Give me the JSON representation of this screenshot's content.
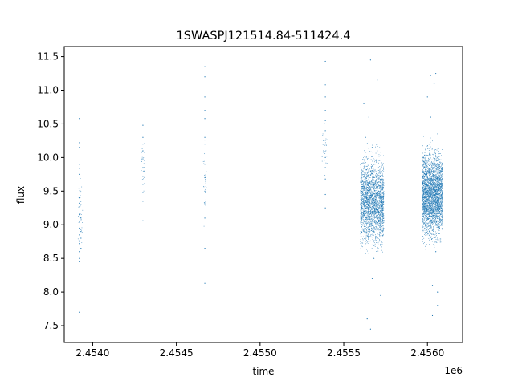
{
  "chart_data": {
    "type": "scatter",
    "title": "1SWASPJ121514.84-511424.4",
    "xlabel": "time",
    "ylabel": "flux",
    "x_offset_label": "1e6",
    "xlim": [
      2.45383,
      2.45621
    ],
    "ylim": [
      7.25,
      11.65
    ],
    "x_ticks": [
      2.454,
      2.4545,
      2.455,
      2.4555,
      2.456
    ],
    "x_tick_labels": [
      "2.4540",
      "2.4545",
      "2.4550",
      "2.4555",
      "2.4560"
    ],
    "y_ticks": [
      7.5,
      8.0,
      8.5,
      9.0,
      9.5,
      10.0,
      10.5,
      11.0,
      11.5
    ],
    "y_tick_labels": [
      "7.5",
      "8.0",
      "8.5",
      "9.0",
      "9.5",
      "10.0",
      "10.5",
      "11.0",
      "11.5"
    ],
    "grid": false,
    "point_color": "#1f77b4",
    "series": [
      {
        "x": [
          2.45392,
          2.45392,
          2.45392,
          2.45392,
          2.45392,
          2.45392,
          2.45392,
          2.45392,
          2.45392,
          2.45392,
          2.45392,
          2.45392,
          2.45392,
          2.45392,
          2.45392,
          2.45392,
          2.45393,
          2.45393,
          2.45393,
          2.45393,
          2.45393,
          2.4543,
          2.4543,
          2.4543,
          2.4543,
          2.4543,
          2.4543,
          2.4543,
          2.4543,
          2.4543,
          2.4543,
          2.4543,
          2.45467,
          2.45467,
          2.45467,
          2.45467,
          2.45467,
          2.45467,
          2.45467,
          2.45467,
          2.45467,
          2.45467,
          2.45467,
          2.45467,
          2.45467,
          2.45467,
          2.45538,
          2.45538,
          2.45539,
          2.45539,
          2.45539,
          2.45539,
          2.45539,
          2.45539,
          2.45539,
          2.45539,
          2.45539,
          2.45539,
          2.45539,
          2.45539,
          2.4556,
          2.45561,
          2.45562,
          2.45563,
          2.45564,
          2.45565,
          2.45566,
          2.45567,
          2.45568,
          2.45569,
          2.4557,
          2.45571,
          2.45572,
          2.45573,
          2.45565,
          2.45567,
          2.45563,
          2.45568,
          2.45566,
          2.4557,
          2.45564,
          2.45572,
          2.45562,
          2.45569,
          2.45566,
          2.45567,
          2.45597,
          2.45598,
          2.45599,
          2.456,
          2.45601,
          2.45602,
          2.45603,
          2.45604,
          2.45605,
          2.45606,
          2.45607,
          2.45608,
          2.45609,
          2.45602,
          2.45604,
          2.45605,
          2.456,
          2.45603,
          2.45606,
          2.45601,
          2.45604,
          2.45605,
          2.45603,
          2.45606,
          2.45602
        ],
        "y": [
          10.58,
          10.22,
          10.15,
          9.9,
          9.75,
          9.4,
          9.32,
          9.15,
          9.05,
          8.95,
          8.85,
          8.72,
          8.6,
          8.5,
          8.45,
          7.7,
          9.3,
          9.1,
          8.9,
          8.8,
          8.65,
          10.48,
          10.3,
          10.2,
          10.1,
          9.98,
          9.85,
          9.72,
          9.6,
          9.48,
          9.35,
          9.06,
          11.35,
          11.2,
          10.9,
          10.7,
          10.58,
          10.3,
          10.2,
          9.9,
          9.7,
          9.5,
          9.3,
          9.1,
          8.65,
          8.13,
          10.25,
          10.1,
          11.43,
          11.08,
          10.9,
          10.7,
          10.55,
          10.4,
          10.2,
          10.0,
          9.85,
          9.68,
          9.45,
          9.25,
          9.9,
          9.5,
          9.2,
          9.7,
          9.4,
          9.1,
          9.8,
          9.3,
          9.6,
          9.0,
          9.45,
          9.25,
          9.55,
          9.35,
          10.6,
          8.2,
          10.3,
          8.5,
          11.45,
          11.15,
          7.6,
          7.95,
          10.8,
          8.8,
          7.45,
          10.15,
          9.8,
          9.4,
          9.1,
          9.7,
          9.3,
          9.6,
          9.9,
          9.2,
          9.5,
          9.7,
          9.4,
          9.15,
          9.55,
          10.6,
          8.4,
          11.25,
          10.9,
          8.1,
          7.8,
          10.2,
          11.1,
          8.6,
          7.65,
          8.0,
          11.22
        ]
      }
    ],
    "clusters": [
      {
        "x": [
          2.45391,
          2.45394
        ],
        "y": [
          8.4,
          10.0
        ],
        "count": 40
      },
      {
        "x": [
          2.45429,
          2.45431
        ],
        "y": [
          9.4,
          10.3
        ],
        "count": 25
      },
      {
        "x": [
          2.45466,
          2.45468
        ],
        "y": [
          8.8,
          10.6
        ],
        "count": 30
      },
      {
        "x": [
          2.45537,
          2.4554
        ],
        "y": [
          9.6,
          10.6
        ],
        "count": 30
      },
      {
        "x": [
          2.4556,
          2.45574
        ],
        "y": [
          8.5,
          10.2
        ],
        "count": 2500
      },
      {
        "x": [
          2.45597,
          2.45609
        ],
        "y": [
          8.6,
          10.3
        ],
        "count": 3000
      }
    ]
  }
}
